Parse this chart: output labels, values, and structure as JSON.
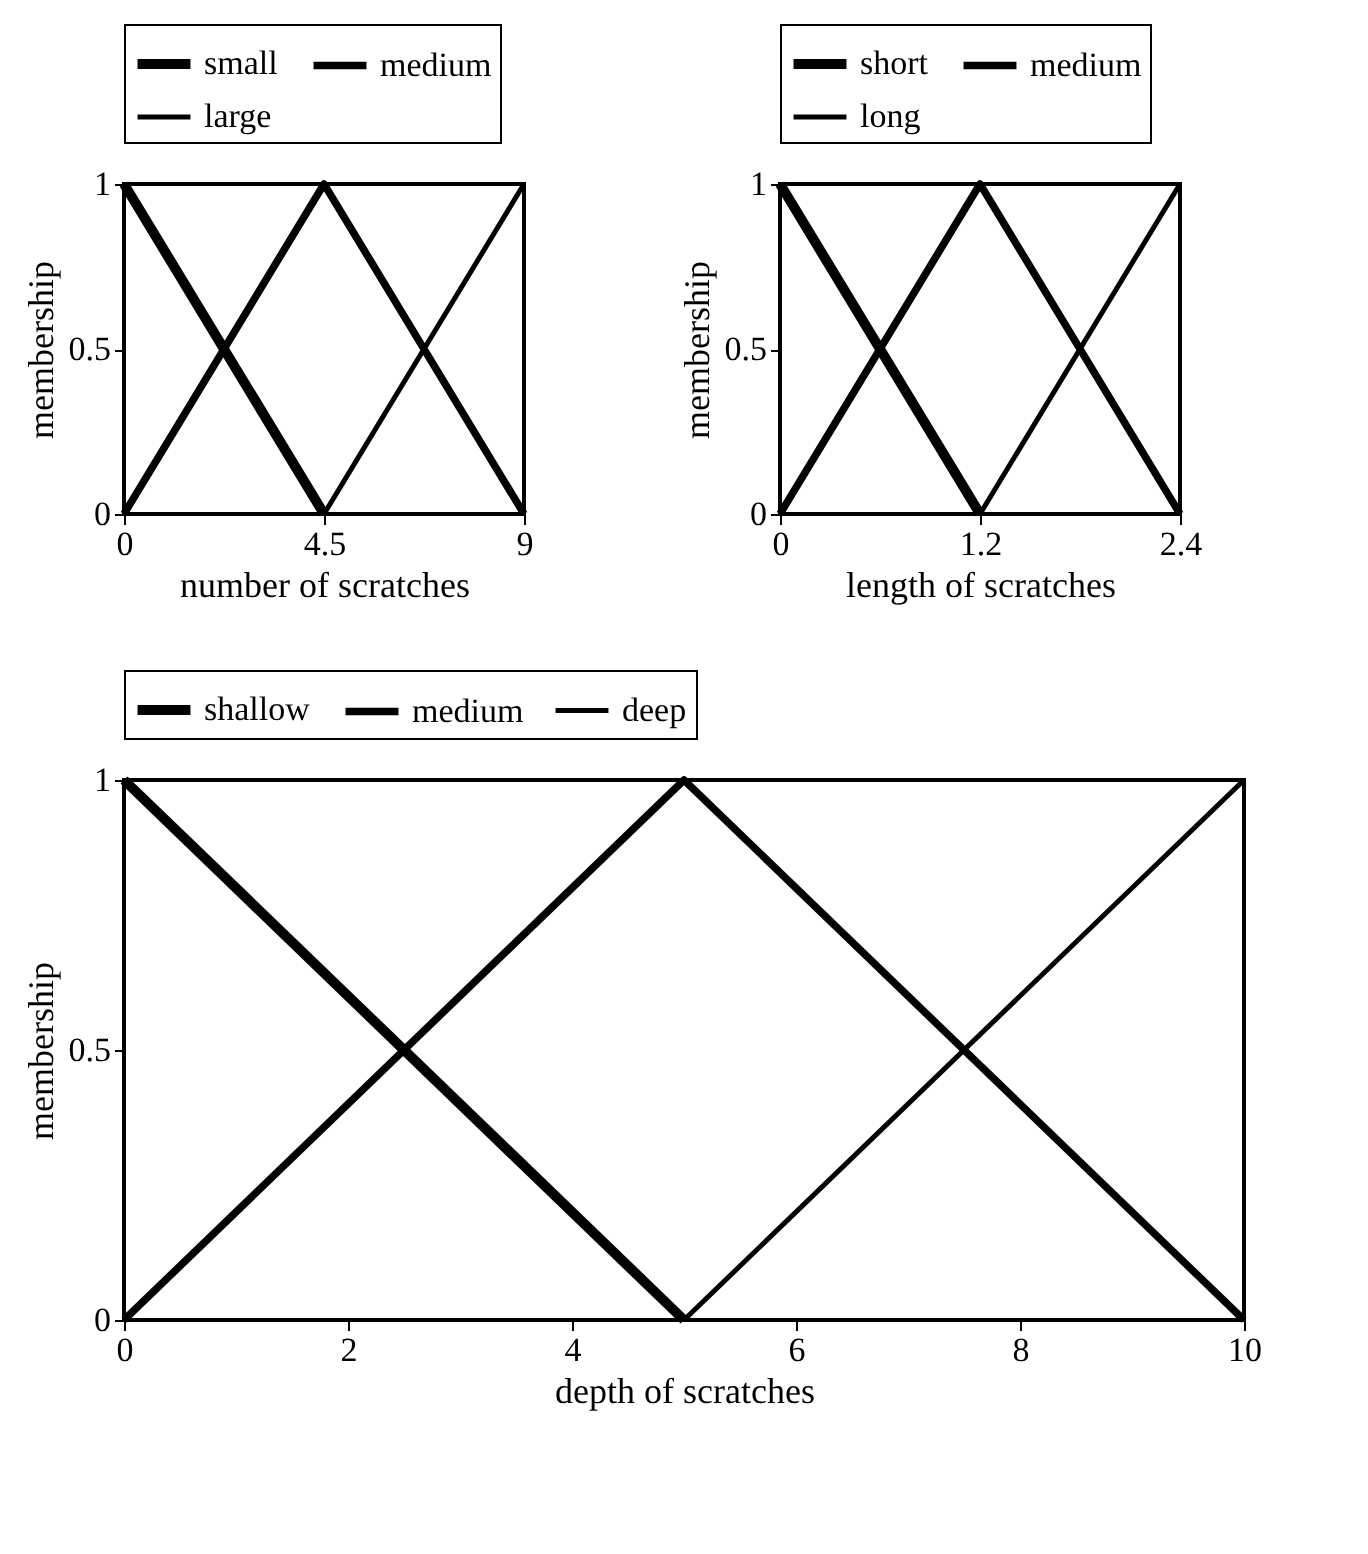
{
  "chart_data": [
    {
      "type": "line",
      "xlabel": "number of scratches",
      "ylabel": "membership",
      "xlim": [
        0,
        9
      ],
      "xticks": [
        0,
        4.5,
        9
      ],
      "ylim": [
        0,
        1
      ],
      "yticks": [
        0,
        0.5,
        1
      ],
      "grid": false,
      "legend": "top",
      "marker": "none",
      "series": [
        {
          "name": "small",
          "color": "#000000",
          "x": [
            0,
            4.5
          ],
          "values": [
            1,
            0
          ]
        },
        {
          "name": "medium",
          "color": "#000000",
          "x": [
            0,
            4.5,
            9
          ],
          "values": [
            0,
            1,
            0
          ]
        },
        {
          "name": "large",
          "color": "#000000",
          "x": [
            4.5,
            9
          ],
          "values": [
            0,
            1
          ]
        }
      ]
    },
    {
      "type": "line",
      "xlabel": "length of scratches",
      "ylabel": "membership",
      "xlim": [
        0,
        2.4
      ],
      "xticks": [
        0,
        1.2,
        2.4
      ],
      "ylim": [
        0,
        1
      ],
      "yticks": [
        0,
        0.5,
        1
      ],
      "grid": false,
      "legend": "top",
      "marker": "none",
      "series": [
        {
          "name": "short",
          "color": "#000000",
          "x": [
            0,
            1.2
          ],
          "values": [
            1,
            0
          ]
        },
        {
          "name": "medium",
          "color": "#000000",
          "x": [
            0,
            1.2,
            2.4
          ],
          "values": [
            0,
            1,
            0
          ]
        },
        {
          "name": "long",
          "color": "#000000",
          "x": [
            1.2,
            2.4
          ],
          "values": [
            0,
            1
          ]
        }
      ]
    },
    {
      "type": "line",
      "xlabel": "depth of scratches",
      "ylabel": "membership",
      "xlim": [
        0,
        10
      ],
      "xticks": [
        0,
        2,
        4,
        6,
        8,
        10
      ],
      "ylim": [
        0,
        1
      ],
      "yticks": [
        0,
        0.5,
        1
      ],
      "grid": false,
      "legend": "top",
      "marker": "none",
      "series": [
        {
          "name": "shallow",
          "color": "#000000",
          "x": [
            0,
            5
          ],
          "values": [
            1,
            0
          ]
        },
        {
          "name": "medium",
          "color": "#000000",
          "x": [
            0,
            5,
            10
          ],
          "values": [
            0,
            1,
            0
          ]
        },
        {
          "name": "deep",
          "color": "#000000",
          "x": [
            5,
            10
          ],
          "values": [
            0,
            1
          ]
        }
      ]
    }
  ]
}
